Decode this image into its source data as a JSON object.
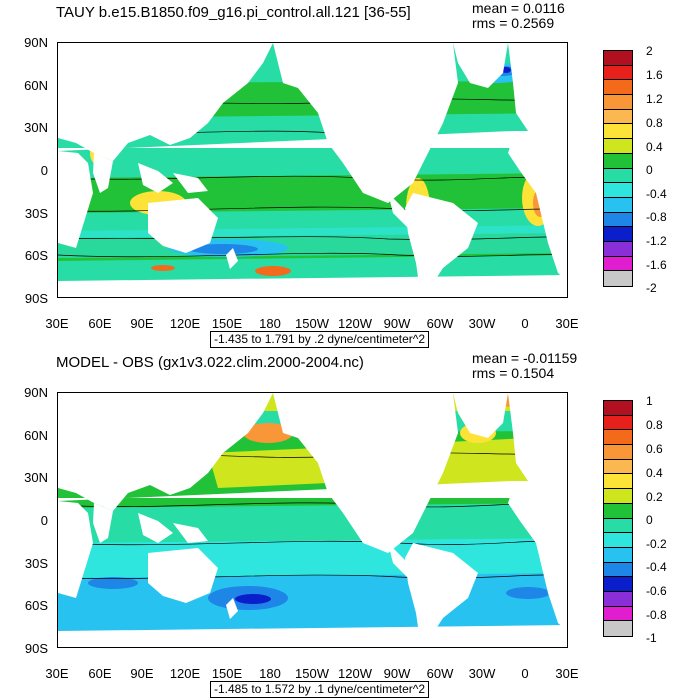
{
  "panels": [
    {
      "title": "TAUY b.e15.B1850.f09_g16.pi_control.all.121 [36-55]",
      "mean": "mean = 0.0116",
      "rms": "rms = 0.2569",
      "range": "-1.435 to 1.791 by .2 dyne/centimeter^2",
      "colorbar_labels": [
        "2",
        "1.6",
        "1.2",
        "0.8",
        "0.4",
        "0",
        "-0.4",
        "-0.8",
        "-1.2",
        "-1.6",
        "-2"
      ]
    },
    {
      "title": "MODEL - OBS (gx1v3.022.clim.2000-2004.nc)",
      "mean": "mean = -0.01159",
      "rms": "rms = 0.1504",
      "range": "-1.485 to 1.572 by .1 dyne/centimeter^2",
      "colorbar_labels": [
        "1",
        "0.8",
        "0.6",
        "0.4",
        "0.2",
        "0",
        "-0.2",
        "-0.4",
        "-0.6",
        "-0.8",
        "-1"
      ]
    }
  ],
  "lat_labels": [
    "90N",
    "60N",
    "30N",
    "0",
    "30S",
    "60S",
    "90S"
  ],
  "lon_labels": [
    "30E",
    "60E",
    "90E",
    "120E",
    "150E",
    "180",
    "150W",
    "120W",
    "90W",
    "60W",
    "30W",
    "0",
    "30E"
  ],
  "colorbar_colors": [
    "#b01020",
    "#e8201c",
    "#f26a1a",
    "#f89638",
    "#fbb850",
    "#fde238",
    "#cfe61e",
    "#22c238",
    "#28dca6",
    "#2ee6de",
    "#28c2f0",
    "#1e86e6",
    "#0a1ecc",
    "#8a2ed8",
    "#e01ed0",
    "#c8c8c8"
  ],
  "colorbar_bottom_color": "#6e6e6e"
}
